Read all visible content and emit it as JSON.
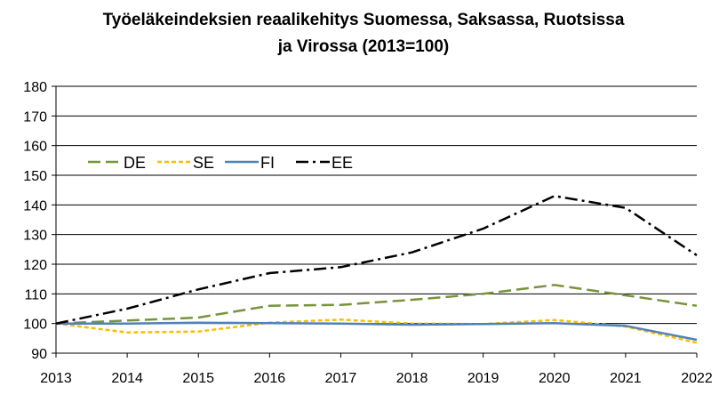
{
  "chart_data": {
    "type": "line",
    "title_line1": "Työeläkeindeksien reaalikehitys Suomessa, Saksassa, Ruotsissa",
    "title_line2": "ja Virossa (2013=100)",
    "xlabel": "",
    "ylabel": "",
    "x": [
      2013,
      2014,
      2015,
      2016,
      2017,
      2018,
      2019,
      2020,
      2021,
      2022
    ],
    "ylim": [
      90,
      180
    ],
    "yticks": [
      90,
      100,
      110,
      120,
      130,
      140,
      150,
      160,
      170,
      180
    ],
    "grid": "horizontal",
    "legend_position": "upper-left inside plot",
    "series": [
      {
        "name": "DE",
        "color": "#77933C",
        "dash": "dashed",
        "values": [
          100,
          101,
          102,
          106,
          106.3,
          108,
          110,
          113,
          109.5,
          106
        ]
      },
      {
        "name": "SE",
        "color": "#F7C000",
        "dash": "dotted",
        "values": [
          100,
          97,
          97.3,
          100.3,
          101.3,
          100,
          99.8,
          101.2,
          99,
          93.5
        ]
      },
      {
        "name": "FI",
        "color": "#4F81BD",
        "dash": "solid",
        "values": [
          100,
          100,
          100.3,
          100.1,
          100,
          99.6,
          99.8,
          100.1,
          99.2,
          94.5
        ]
      },
      {
        "name": "EE",
        "color": "#000000",
        "dash": "dashdot",
        "values": [
          100,
          105,
          111.5,
          117,
          119,
          124,
          132,
          143,
          139,
          123
        ]
      }
    ]
  }
}
